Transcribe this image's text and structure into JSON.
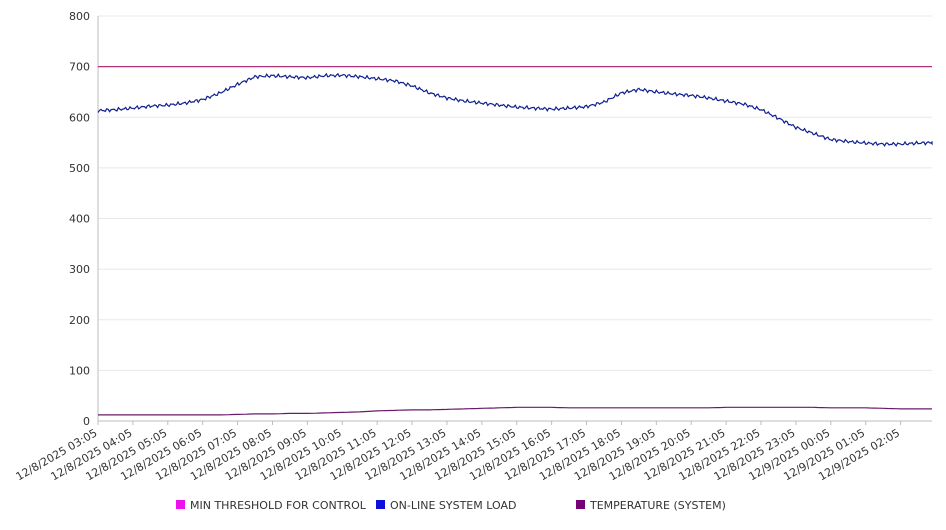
{
  "chart_data": {
    "type": "line",
    "title": "",
    "xlabel": "",
    "ylabel": "",
    "ylim": [
      0,
      800
    ],
    "yticks": [
      0,
      100,
      200,
      300,
      400,
      500,
      600,
      700,
      800
    ],
    "grid": true,
    "legend_position": "bottom",
    "x_tick_labels": [
      "12/8/2025 03:05",
      "12/8/2025 04:05",
      "12/8/2025 05:05",
      "12/8/2025 06:05",
      "12/8/2025 07:05",
      "12/8/2025 08:05",
      "12/8/2025 09:05",
      "12/8/2025 10:05",
      "12/8/2025 11:05",
      "12/8/2025 12:05",
      "12/8/2025 13:05",
      "12/8/2025 14:05",
      "12/8/2025 15:05",
      "12/8/2025 16:05",
      "12/8/2025 17:05",
      "12/8/2025 18:05",
      "12/8/2025 19:05",
      "12/8/2025 20:05",
      "12/8/2025 21:05",
      "12/8/2025 22:05",
      "12/8/2025 23:05",
      "12/9/2025 00:05",
      "12/9/2025 01:05",
      "12/9/2025 02:05"
    ],
    "x_hours": [
      3,
      3.5,
      4,
      4.5,
      5,
      5.5,
      6,
      6.5,
      7,
      7.5,
      8,
      8.5,
      9,
      9.5,
      10,
      10.5,
      11,
      11.5,
      12,
      12.5,
      13,
      13.5,
      14,
      14.5,
      15,
      15.5,
      16,
      16.5,
      17,
      17.5,
      18,
      18.5,
      19,
      19.5,
      20,
      20.5,
      21,
      21.5,
      22,
      22.5,
      23,
      23.5,
      24,
      24.5,
      25,
      25.5,
      26,
      26.5,
      27
    ],
    "series": [
      {
        "name": "MIN THRESHOLD FOR CONTROL",
        "color": "#ee11ee",
        "line_color": "#b0307a",
        "values": [
          700,
          700,
          700,
          700,
          700,
          700,
          700,
          700,
          700,
          700,
          700,
          700,
          700,
          700,
          700,
          700,
          700,
          700,
          700,
          700,
          700,
          700,
          700,
          700,
          700,
          700,
          700,
          700,
          700,
          700,
          700,
          700,
          700,
          700,
          700,
          700,
          700,
          700,
          700,
          700,
          700,
          700,
          700,
          700,
          700,
          700,
          700,
          700,
          700
        ]
      },
      {
        "name": "ON-LINE SYSTEM LOAD",
        "color": "#1010dd",
        "line_color": "#102090",
        "values": [
          613,
          615,
          618,
          622,
          624,
          628,
          635,
          648,
          665,
          680,
          682,
          680,
          678,
          682,
          683,
          680,
          676,
          672,
          662,
          648,
          638,
          632,
          628,
          624,
          620,
          618,
          616,
          618,
          621,
          630,
          648,
          655,
          650,
          646,
          643,
          638,
          632,
          626,
          615,
          598,
          580,
          568,
          556,
          552,
          549,
          547,
          547,
          549,
          550
        ]
      },
      {
        "name": "TEMPERATURE (SYSTEM)",
        "color": "#770077",
        "line_color": "#6a1a6a",
        "values": [
          12,
          12,
          12,
          12,
          12,
          12,
          12,
          12,
          13,
          14,
          14,
          15,
          15,
          16,
          17,
          18,
          20,
          21,
          22,
          22,
          23,
          24,
          25,
          26,
          27,
          27,
          27,
          26,
          26,
          26,
          26,
          26,
          26,
          26,
          26,
          26,
          27,
          27,
          27,
          27,
          27,
          27,
          26,
          26,
          26,
          25,
          24,
          24,
          24
        ]
      }
    ]
  }
}
